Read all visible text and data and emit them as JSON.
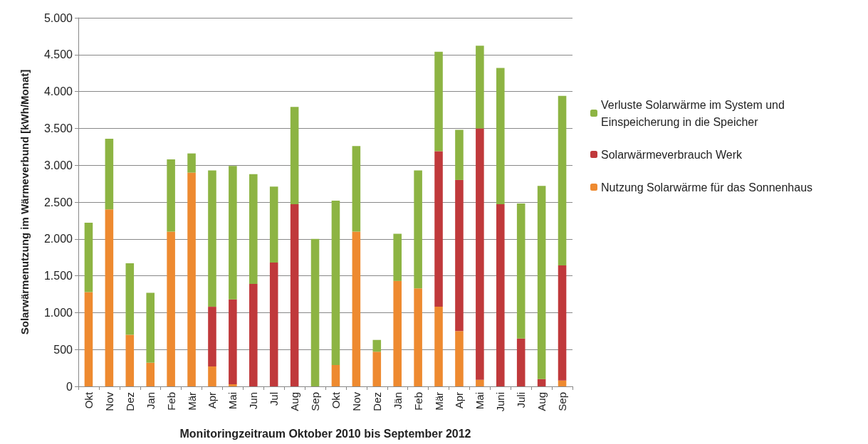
{
  "chart_data": {
    "type": "bar",
    "stacked": true,
    "xlabel": "Monitoringzeitraum Oktober 2010 bis September 2012",
    "ylabel": "Solarwärmenutzung im Wärmeverbund [kWh/Monat]",
    "categories": [
      "Okt",
      "Nov",
      "Dez",
      "Jan",
      "Feb",
      "Mär",
      "Apr",
      "Mai",
      "Jun",
      "Jul",
      "Aug",
      "Sep",
      "Okt",
      "Nov",
      "Dez",
      "Jän",
      "Feb",
      "Mär",
      "Apr",
      "Mai",
      "Juni",
      "Juli",
      "Aug",
      "Sep"
    ],
    "series": [
      {
        "name": "Nutzung Solarwärme für das Sonnenhaus",
        "color": "#ee8a30",
        "values": [
          1280,
          2400,
          700,
          320,
          2100,
          2900,
          270,
          30,
          0,
          0,
          0,
          0,
          290,
          2100,
          470,
          1430,
          1330,
          1080,
          750,
          90,
          0,
          0,
          0,
          80
        ]
      },
      {
        "name": "Solarwärmeverbrauch Werk",
        "color": "#c0393b",
        "values": [
          0,
          0,
          0,
          0,
          0,
          0,
          810,
          1150,
          1390,
          1680,
          2470,
          0,
          0,
          0,
          0,
          0,
          0,
          2110,
          2050,
          3410,
          2470,
          650,
          100,
          1560
        ]
      },
      {
        "name": "Verluste Solarwärme im System und Einspeicherung in die Speicher",
        "color": "#8db443",
        "values": [
          940,
          960,
          970,
          950,
          980,
          260,
          1850,
          1810,
          1490,
          1030,
          1320,
          2000,
          2230,
          1160,
          160,
          640,
          1600,
          1350,
          680,
          1120,
          1850,
          1830,
          2620,
          2300
        ]
      }
    ],
    "ylim": [
      0,
      5000
    ],
    "yticks": [
      {
        "value": 0,
        "label": "0"
      },
      {
        "value": 500,
        "label": "500"
      },
      {
        "value": 1000,
        "label": "1.000"
      },
      {
        "value": 1500,
        "label": "1.500"
      },
      {
        "value": 2000,
        "label": "2.000"
      },
      {
        "value": 2500,
        "label": "2.500"
      },
      {
        "value": 3000,
        "label": "3.000"
      },
      {
        "value": 3500,
        "label": "3.500"
      },
      {
        "value": 4000,
        "label": "4.000"
      },
      {
        "value": 4500,
        "label": "4.500"
      },
      {
        "value": 5000,
        "label": "5.000"
      }
    ],
    "grid": "y",
    "legend": "right"
  }
}
